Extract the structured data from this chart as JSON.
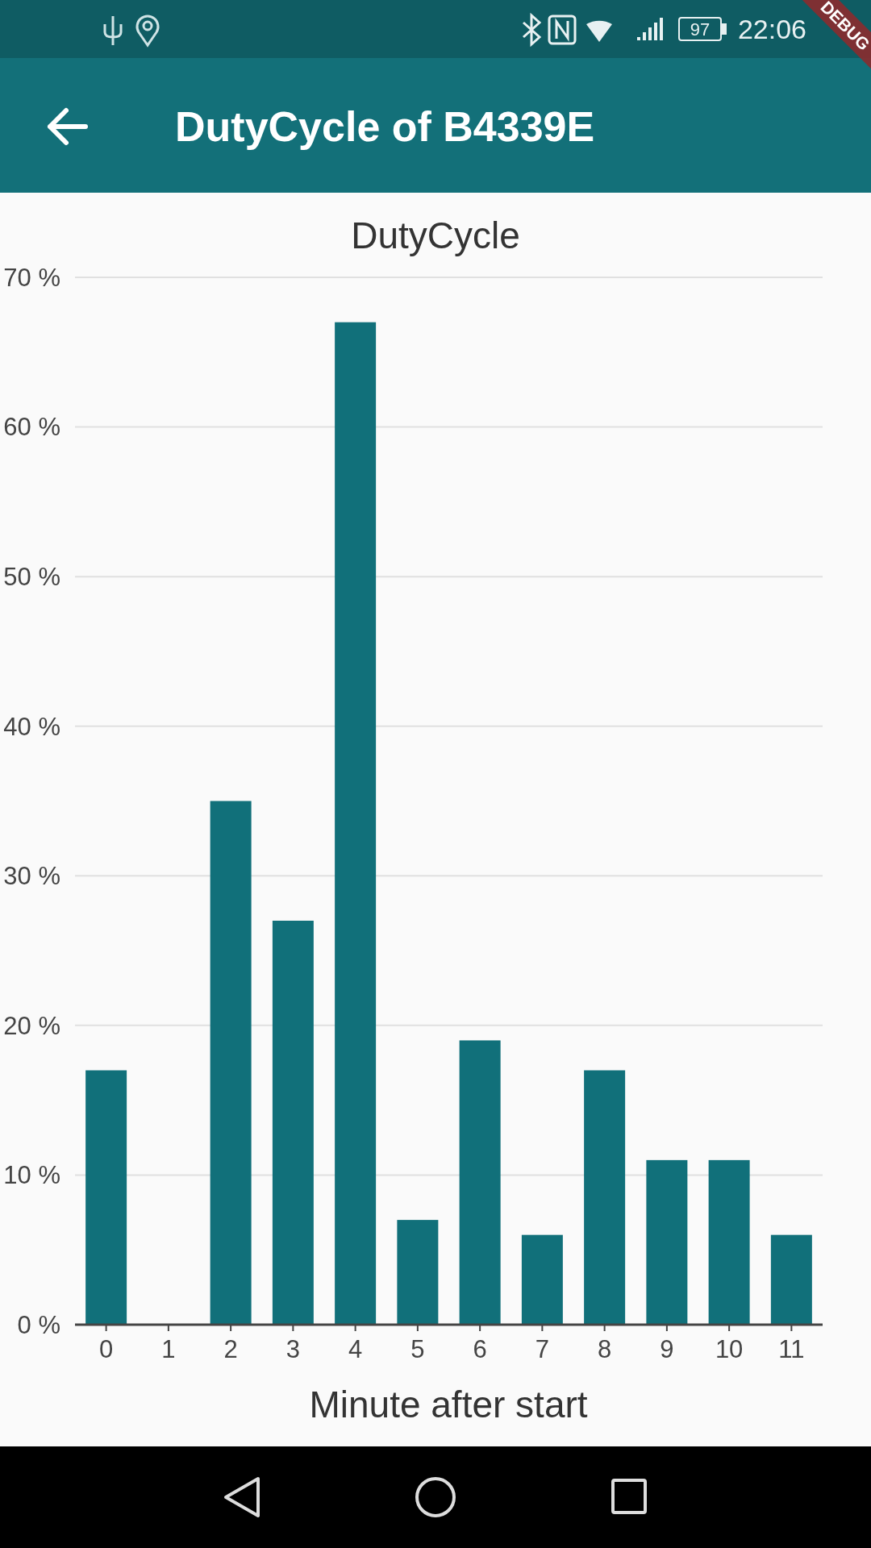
{
  "chart_data": {
    "type": "bar",
    "title": "DutyCycle of B4339E",
    "subtitle": "DutyCycle",
    "xlabel": "Minute after start",
    "categories": [
      "0",
      "1",
      "2",
      "3",
      "4",
      "5",
      "6",
      "7",
      "8",
      "9",
      "10",
      "11"
    ],
    "values": [
      17,
      0,
      35,
      27,
      67,
      7,
      19,
      6,
      17,
      11,
      11,
      6
    ],
    "color": "#11707a",
    "ylim": [
      0,
      70
    ],
    "yticks": [
      {
        "value": 0,
        "label": "0 %"
      },
      {
        "value": 10,
        "label": "10 %"
      },
      {
        "value": 20,
        "label": "20 %"
      },
      {
        "value": 30,
        "label": "30 %"
      },
      {
        "value": 40,
        "label": "40 %"
      },
      {
        "value": 50,
        "label": "50 %"
      },
      {
        "value": 60,
        "label": "60 %"
      },
      {
        "value": 70,
        "label": "70 %"
      }
    ],
    "grid": "y",
    "annotations": [
      "22:06",
      "97",
      "DEBUG"
    ]
  }
}
